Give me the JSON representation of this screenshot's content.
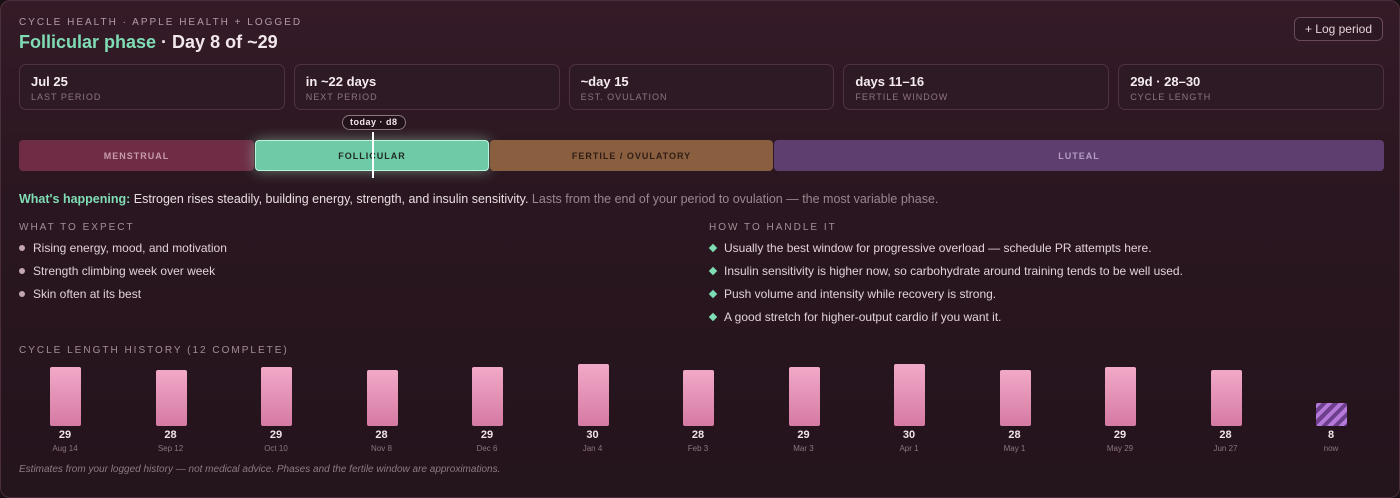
{
  "header": {
    "eyebrow": "CYCLE HEALTH · APPLE HEALTH + LOGGED",
    "phase": "Follicular phase",
    "day_text": " · Day 8 of ~29",
    "log_button": "+ Log period"
  },
  "stats": [
    {
      "value": "Jul 25",
      "label": "LAST PERIOD"
    },
    {
      "value": "in ~22 days",
      "label": "NEXT PERIOD"
    },
    {
      "value": "~day 15",
      "label": "EST. OVULATION"
    },
    {
      "value": "days 11–16",
      "label": "FERTILE WINDOW"
    },
    {
      "value": "29d · 28–30",
      "label": "CYCLE LENGTH"
    }
  ],
  "timeline": {
    "today_label": "today · d8",
    "segments": [
      "MENSTRUAL",
      "FOLLICULAR",
      "FERTILE / OVULATORY",
      "LUTEAL"
    ]
  },
  "happening": {
    "label": "What's happening:",
    "text": " Estrogen rises steadily, building energy, strength, and insulin sensitivity.",
    "muted": " Lasts from the end of your period to ovulation — the most variable phase."
  },
  "expect": {
    "title": "WHAT TO EXPECT",
    "items": [
      "Rising energy, mood, and motivation",
      "Strength climbing week over week",
      "Skin often at its best"
    ]
  },
  "handle": {
    "title": "HOW TO HANDLE IT",
    "items": [
      "Usually the best window for progressive overload — schedule PR attempts here.",
      "Insulin sensitivity is higher now, so carbohydrate around training tends to be well used.",
      "Push volume and intensity while recovery is strong.",
      "A good stretch for higher-output cardio if you want it."
    ]
  },
  "history": {
    "title": "CYCLE LENGTH HISTORY (12 COMPLETE)"
  },
  "chart_data": {
    "type": "bar",
    "categories": [
      "Aug 14",
      "Sep 12",
      "Oct 10",
      "Nov 8",
      "Dec 6",
      "Jan 4",
      "Feb 3",
      "Mar 3",
      "Apr 1",
      "May 1",
      "May 29",
      "Jun 27",
      "now"
    ],
    "values": [
      29,
      28,
      29,
      28,
      29,
      30,
      28,
      29,
      30,
      28,
      29,
      28,
      8
    ],
    "current_index": 12,
    "ylim": [
      0,
      30
    ]
  },
  "colors": {
    "accent": "#7fdcb4",
    "bar": "#e99abd",
    "current_bar": "#9b5fc0"
  },
  "footnote": "Estimates from your logged history — not medical advice. Phases and the fertile window are approximations."
}
